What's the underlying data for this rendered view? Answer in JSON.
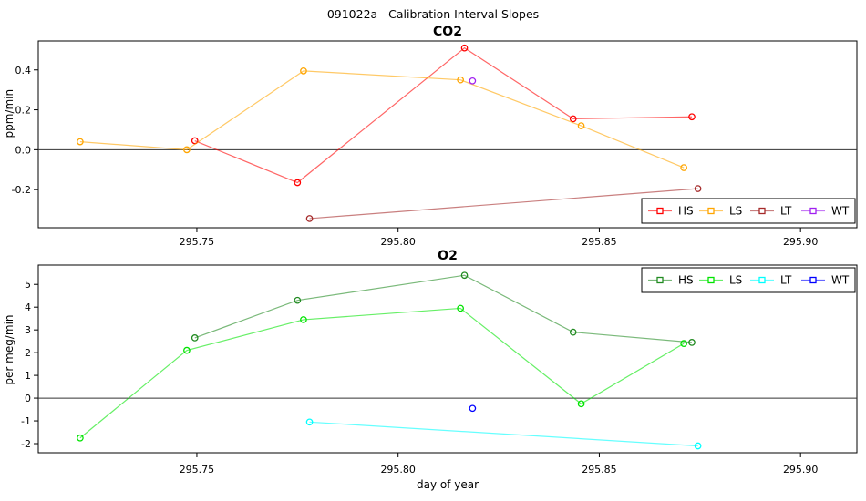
{
  "page_title": "091022a   Calibration Interval Slopes",
  "chart_data": [
    {
      "type": "line",
      "title": "CO2",
      "ylabel": "ppm/min",
      "xlabel": "",
      "xlim": [
        295.7106,
        295.914
      ],
      "ylim": [
        -0.391,
        0.545
      ],
      "xticks": [
        295.75,
        295.8,
        295.85,
        295.9
      ],
      "xtick_labels": [
        "295.75",
        "295.80",
        "295.85",
        "295.90"
      ],
      "yticks": [
        -0.2,
        0.0,
        0.2,
        0.4
      ],
      "ytick_labels": [
        "-0.2",
        "0.0",
        "0.2",
        "0.4"
      ],
      "zero_line": true,
      "grid": false,
      "legend_position": "bottom-right",
      "series": [
        {
          "name": "HS",
          "color": "#ff0000",
          "points": [
            [
              295.7495,
              0.045
            ],
            [
              295.775,
              -0.165
            ],
            [
              295.8165,
              0.51
            ],
            [
              295.8435,
              0.155
            ],
            [
              295.873,
              0.165
            ]
          ]
        },
        {
          "name": "LS",
          "color": "#ffa500",
          "points": [
            [
              295.721,
              0.04
            ],
            [
              295.7475,
              0.0
            ],
            [
              295.7765,
              0.395
            ],
            [
              295.8155,
              0.35
            ],
            [
              295.8455,
              0.12
            ],
            [
              295.871,
              -0.09
            ]
          ]
        },
        {
          "name": "LT",
          "color": "#a52a2a",
          "points": [
            [
              295.778,
              -0.345
            ],
            [
              295.8745,
              -0.195
            ]
          ]
        },
        {
          "name": "WT",
          "color": "#a020f0",
          "points": [
            [
              295.8185,
              0.345
            ]
          ]
        }
      ]
    },
    {
      "type": "line",
      "title": "O2",
      "ylabel": "per meg/min",
      "xlabel": "day of year",
      "xlim": [
        295.7106,
        295.914
      ],
      "ylim": [
        -2.4,
        5.85
      ],
      "xticks": [
        295.75,
        295.8,
        295.85,
        295.9
      ],
      "xtick_labels": [
        "295.75",
        "295.80",
        "295.85",
        "295.90"
      ],
      "yticks": [
        -2,
        -1,
        0,
        1,
        2,
        3,
        4,
        5
      ],
      "ytick_labels": [
        "-2",
        "-1",
        "0",
        "1",
        "2",
        "3",
        "4",
        "5"
      ],
      "zero_line": true,
      "grid": false,
      "legend_position": "top-right",
      "series": [
        {
          "name": "HS",
          "color": "#228b22",
          "points": [
            [
              295.7495,
              2.65
            ],
            [
              295.775,
              4.3
            ],
            [
              295.8165,
              5.4
            ],
            [
              295.8435,
              2.9
            ],
            [
              295.873,
              2.45
            ]
          ]
        },
        {
          "name": "LS",
          "color": "#00e400",
          "points": [
            [
              295.721,
              -1.75
            ],
            [
              295.7475,
              2.1
            ],
            [
              295.7765,
              3.45
            ],
            [
              295.8155,
              3.95
            ],
            [
              295.8455,
              -0.25
            ],
            [
              295.871,
              2.4
            ]
          ]
        },
        {
          "name": "LT",
          "color": "#00ffff",
          "points": [
            [
              295.778,
              -1.05
            ],
            [
              295.8745,
              -2.1
            ]
          ]
        },
        {
          "name": "WT",
          "color": "#0000ff",
          "points": [
            [
              295.8185,
              -0.45
            ]
          ]
        }
      ]
    }
  ]
}
